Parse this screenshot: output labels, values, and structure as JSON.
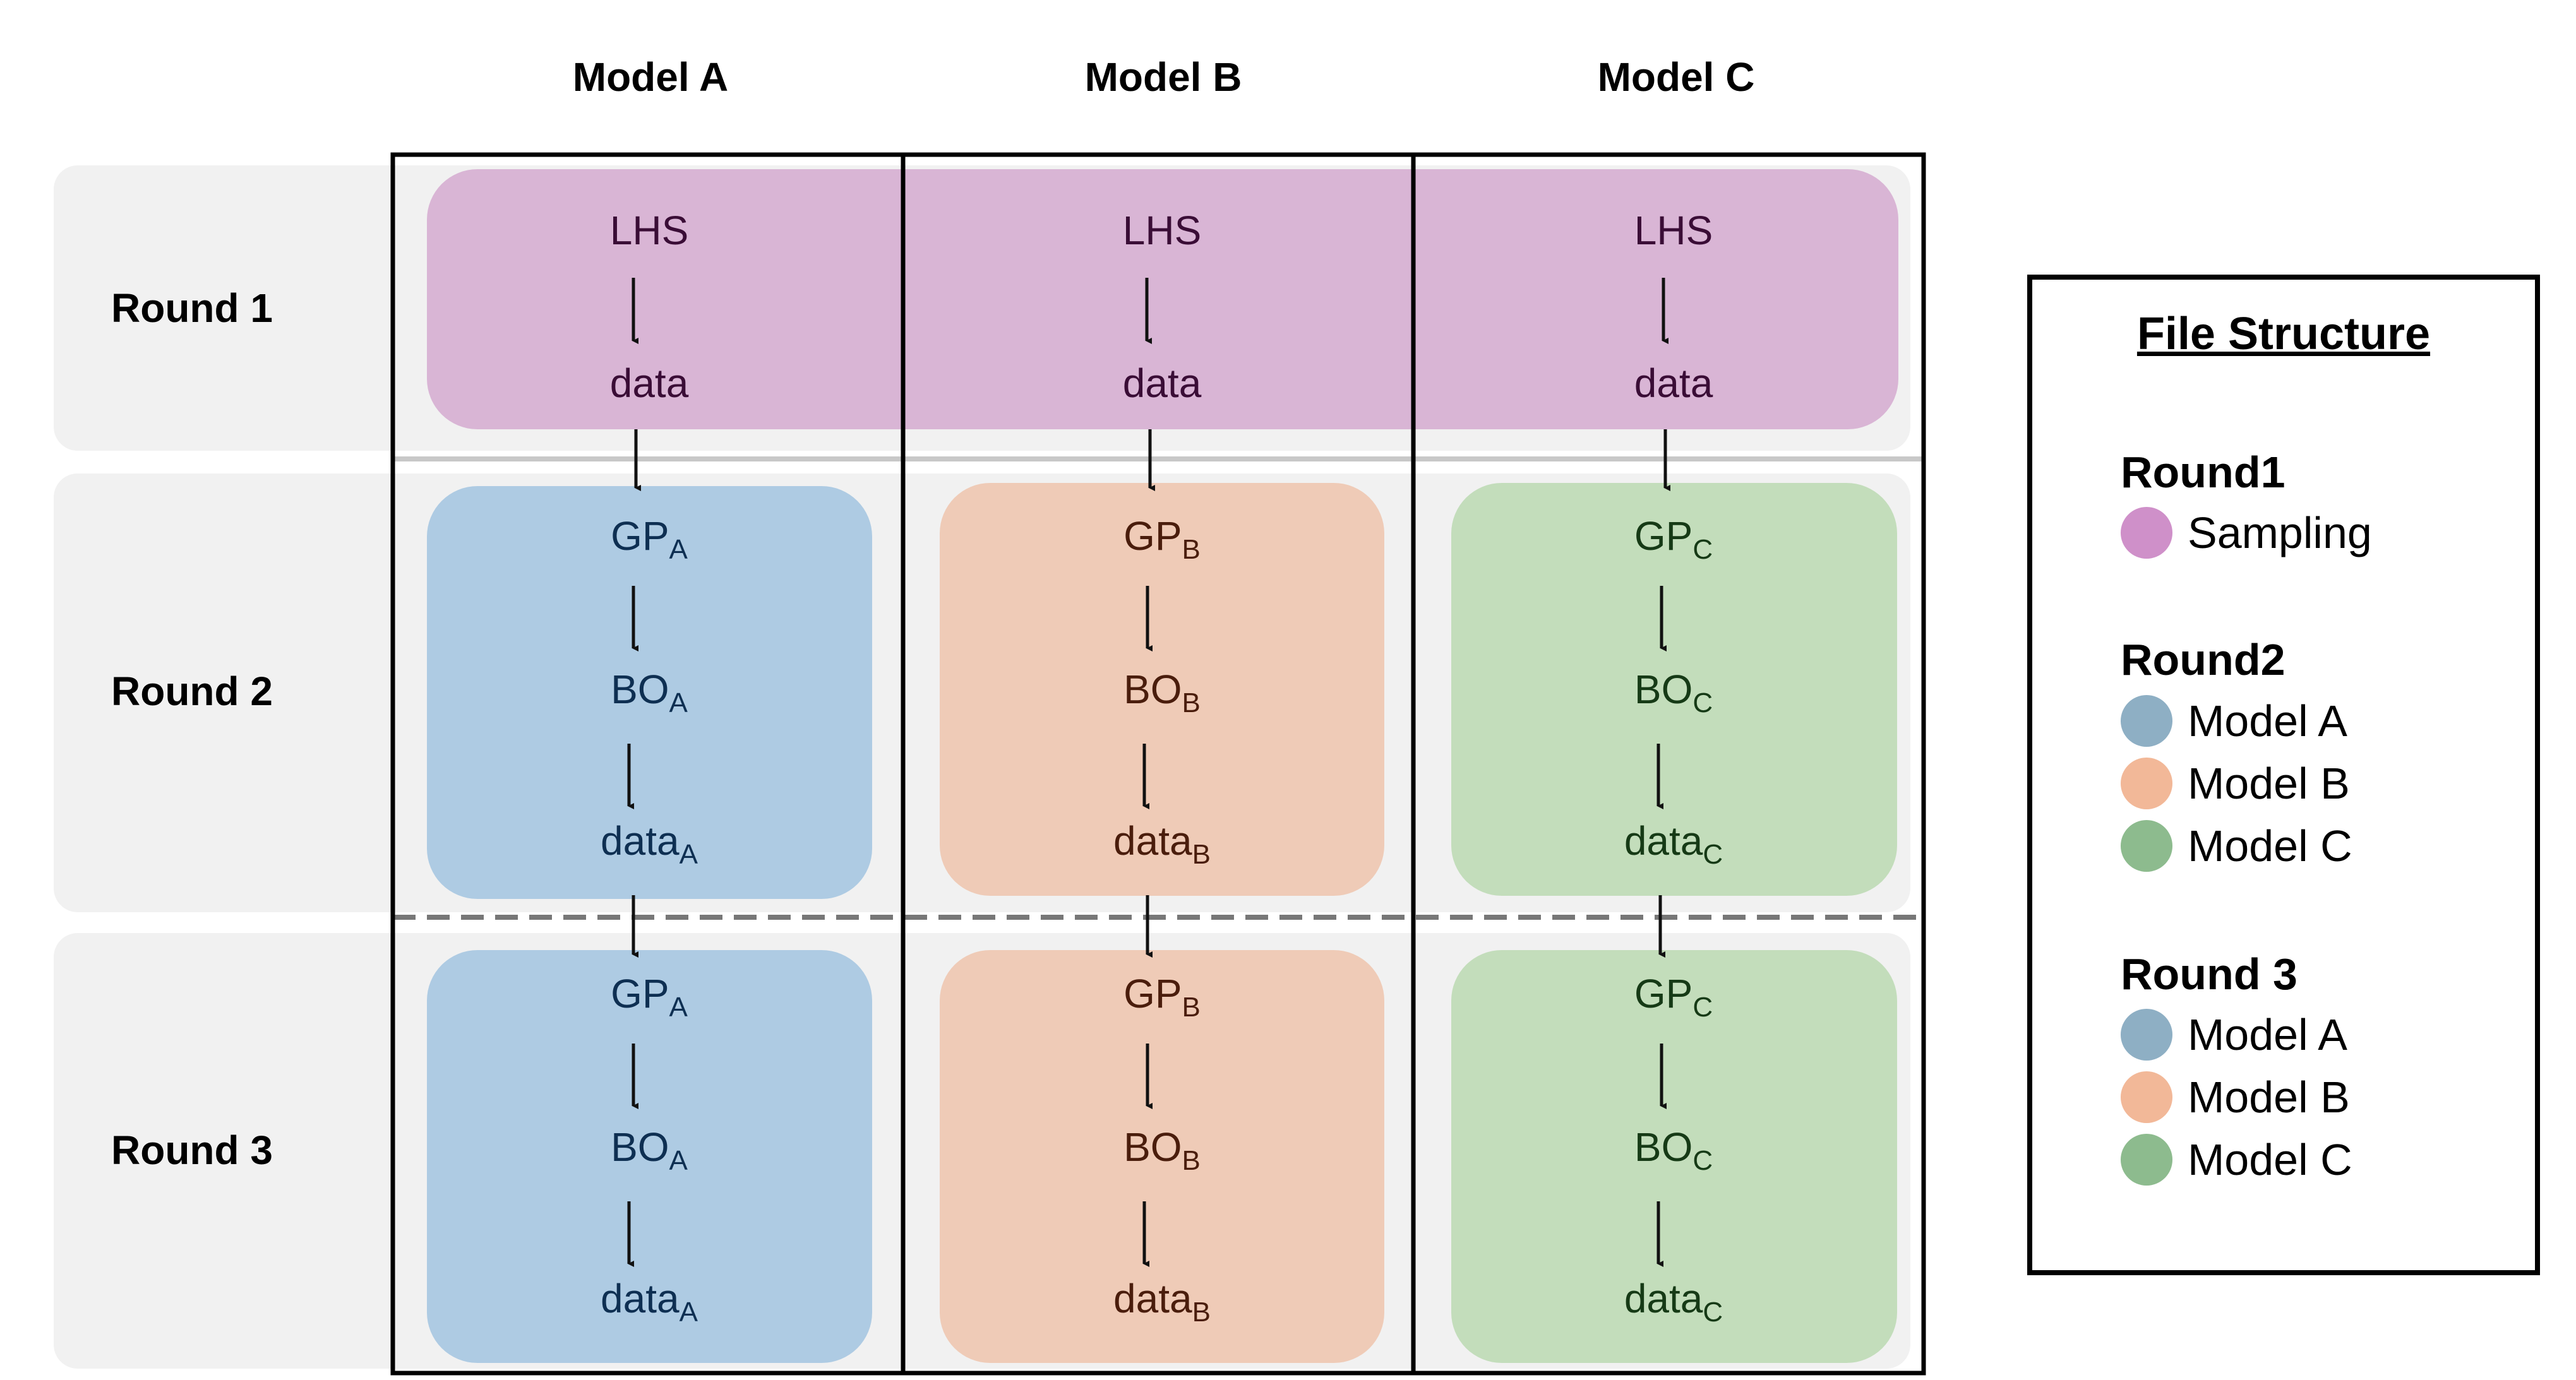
{
  "columns": [
    "Model A",
    "Model B",
    "Model C"
  ],
  "rows": [
    "Round 1",
    "Round 2",
    "Round 3"
  ],
  "round1": {
    "top": "LHS",
    "bottom": "data"
  },
  "models": [
    {
      "gp": "GP",
      "bo": "BO",
      "data": "data",
      "sub": "A",
      "text_color": "#0e2f52",
      "fill": "#aecbe3"
    },
    {
      "gp": "GP",
      "bo": "BO",
      "data": "data",
      "sub": "B",
      "text_color": "#4a1d0c",
      "fill": "#efcbb7"
    },
    {
      "gp": "GP",
      "bo": "BO",
      "data": "data",
      "sub": "C",
      "text_color": "#163a16",
      "fill": "#c3ddbb"
    }
  ],
  "colors": {
    "sampling_fill": "#d9b5d5",
    "sampling_text": "#3a0d36",
    "row_background": "#f1f1f1",
    "legend_sampling": "#cf90c9",
    "legend_model_a": "#8eafc4",
    "legend_model_b": "#f2b898",
    "legend_model_c": "#8dbb8e"
  },
  "legend": {
    "title": "File Structure",
    "groups": [
      {
        "round": "Round1",
        "items": [
          {
            "label": "Sampling",
            "color": "#cf90c9"
          }
        ]
      },
      {
        "round": "Round2",
        "items": [
          {
            "label": "Model A",
            "color": "#8eafc4"
          },
          {
            "label": "Model B",
            "color": "#f2b898"
          },
          {
            "label": "Model C",
            "color": "#8dbb8e"
          }
        ]
      },
      {
        "round": "Round 3",
        "items": [
          {
            "label": "Model A",
            "color": "#8eafc4"
          },
          {
            "label": "Model B",
            "color": "#f2b898"
          },
          {
            "label": "Model C",
            "color": "#8dbb8e"
          }
        ]
      }
    ]
  }
}
